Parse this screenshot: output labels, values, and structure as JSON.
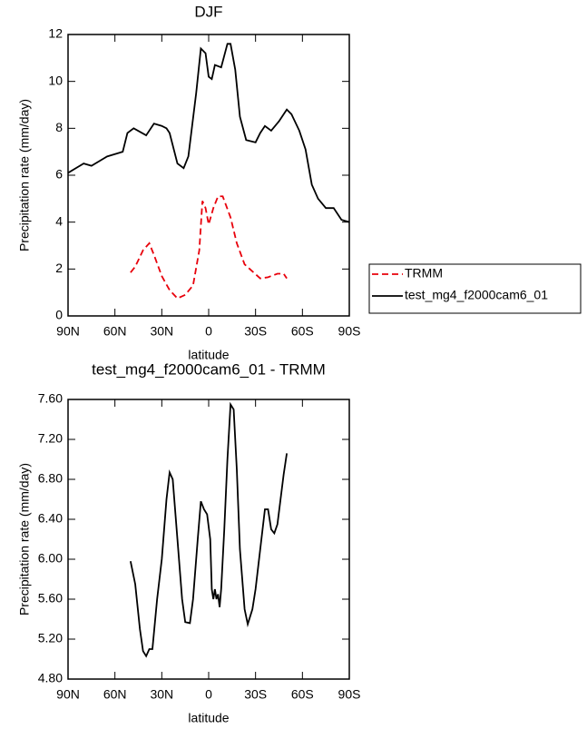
{
  "chart_data": [
    {
      "type": "line",
      "title": "DJF",
      "x_label": "latitude",
      "y_label": "Precipitation rate (mm/day)",
      "xlim": [
        90,
        -90
      ],
      "ylim": [
        0,
        12
      ],
      "xticks": [
        {
          "value": 90,
          "label": "90N"
        },
        {
          "value": 60,
          "label": "60N"
        },
        {
          "value": 30,
          "label": "30N"
        },
        0,
        {
          "value": -30,
          "label": "30S"
        },
        {
          "value": -60,
          "label": "60S"
        },
        {
          "value": -90,
          "label": "90S"
        }
      ],
      "yticks": [
        0,
        2,
        4,
        6,
        8,
        10,
        12
      ],
      "legend": "right",
      "series": [
        {
          "name": "TRMM",
          "color": "#e8000b",
          "linestyle": "dashed",
          "x": [
            50,
            47,
            42,
            38,
            35,
            30,
            25,
            20,
            15,
            10,
            6,
            4,
            2,
            0,
            -3,
            -6,
            -9,
            -14,
            -18,
            -23,
            -28,
            -33,
            -38,
            -44,
            -48,
            -50
          ],
          "values": [
            1.85,
            2.1,
            2.8,
            3.1,
            2.6,
            1.7,
            1.1,
            0.75,
            0.9,
            1.3,
            2.8,
            4.9,
            4.6,
            3.9,
            4.6,
            5.1,
            5.1,
            4.2,
            3.1,
            2.2,
            1.9,
            1.6,
            1.65,
            1.8,
            1.8,
            1.6
          ]
        },
        {
          "name": "test_mg4_f2000cam6_01",
          "color": "#000000",
          "linestyle": "solid",
          "x": [
            90,
            85,
            80,
            75,
            70,
            65,
            60,
            55,
            52,
            48,
            40,
            35,
            30,
            27,
            25,
            20,
            16,
            13,
            8,
            5,
            2,
            0,
            -2,
            -4,
            -8,
            -12,
            -14,
            -17,
            -20,
            -24,
            -30,
            -33,
            -36,
            -40,
            -45,
            -50,
            -53,
            -58,
            -62,
            -66,
            -70,
            -75,
            -80,
            -85,
            -90
          ],
          "values": [
            6.1,
            6.3,
            6.5,
            6.4,
            6.6,
            6.8,
            6.9,
            7.0,
            7.8,
            8.0,
            7.7,
            8.2,
            8.1,
            8.0,
            7.8,
            6.5,
            6.3,
            6.8,
            9.5,
            11.4,
            11.2,
            10.2,
            10.1,
            10.7,
            10.6,
            11.6,
            11.6,
            10.5,
            8.5,
            7.5,
            7.4,
            7.8,
            8.1,
            7.9,
            8.3,
            8.8,
            8.6,
            7.9,
            7.1,
            5.6,
            5.0,
            4.6,
            4.6,
            4.1,
            4.0
          ]
        }
      ]
    },
    {
      "type": "line",
      "title": "test_mg4_f2000cam6_01 - TRMM",
      "x_label": "latitude",
      "y_label": "Precipitation rate (mm/day)",
      "xlim": [
        90,
        -90
      ],
      "ylim": [
        4.8,
        7.6
      ],
      "xticks": [
        {
          "value": 90,
          "label": "90N"
        },
        {
          "value": 60,
          "label": "60N"
        },
        {
          "value": 30,
          "label": "30N"
        },
        0,
        {
          "value": -30,
          "label": "30S"
        },
        {
          "value": -60,
          "label": "60S"
        },
        {
          "value": -90,
          "label": "90S"
        }
      ],
      "yticks": [
        {
          "value": 4.8,
          "label": "4.80"
        },
        {
          "value": 5.2,
          "label": "5.20"
        },
        {
          "value": 5.6,
          "label": "5.60"
        },
        {
          "value": 6.0,
          "label": "6.00"
        },
        {
          "value": 6.4,
          "label": "6.40"
        },
        {
          "value": 6.8,
          "label": "6.80"
        },
        {
          "value": 7.2,
          "label": "7.20"
        },
        {
          "value": 7.6,
          "label": "7.60"
        }
      ],
      "series": [
        {
          "color": "#000000",
          "linestyle": "solid",
          "x": [
            50,
            47,
            44,
            42,
            40,
            38,
            36,
            33,
            30,
            27,
            25,
            23,
            20,
            17,
            15,
            12,
            10,
            7,
            5,
            3,
            1,
            -1,
            -2,
            -3,
            -4,
            -5,
            -6,
            -7,
            -8,
            -10,
            -12,
            -14,
            -16,
            -18,
            -20,
            -23,
            -25,
            -28,
            -30,
            -33,
            -36,
            -38,
            -40,
            -42,
            -44,
            -46,
            -48,
            -50
          ],
          "values": [
            5.98,
            5.75,
            5.3,
            5.08,
            5.03,
            5.1,
            5.1,
            5.6,
            6.0,
            6.6,
            6.87,
            6.8,
            6.2,
            5.6,
            5.37,
            5.36,
            5.6,
            6.2,
            6.58,
            6.5,
            6.45,
            6.2,
            5.7,
            5.6,
            5.7,
            5.6,
            5.65,
            5.52,
            5.7,
            6.3,
            7.0,
            7.55,
            7.5,
            6.9,
            6.1,
            5.5,
            5.35,
            5.5,
            5.7,
            6.1,
            6.5,
            6.5,
            6.3,
            6.26,
            6.35,
            6.6,
            6.85,
            7.06
          ]
        }
      ]
    }
  ]
}
